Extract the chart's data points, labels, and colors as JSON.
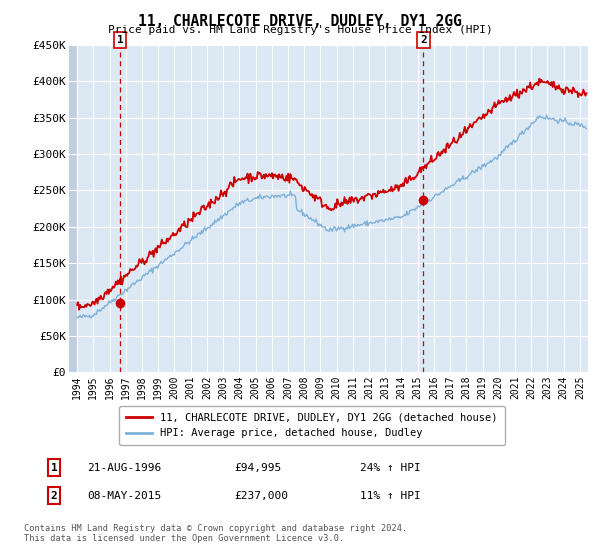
{
  "title": "11, CHARLECOTE DRIVE, DUDLEY, DY1 2GG",
  "subtitle": "Price paid vs. HM Land Registry's House Price Index (HPI)",
  "legend_line1": "11, CHARLECOTE DRIVE, DUDLEY, DY1 2GG (detached house)",
  "legend_line2": "HPI: Average price, detached house, Dudley",
  "sale1_label": "1",
  "sale1_date": "21-AUG-1996",
  "sale1_price": "£94,995",
  "sale1_hpi": "24% ↑ HPI",
  "sale1_year": 1996.64,
  "sale1_value": 94995,
  "sale2_label": "2",
  "sale2_date": "08-MAY-2015",
  "sale2_price": "£237,000",
  "sale2_hpi": "11% ↑ HPI",
  "sale2_year": 2015.35,
  "sale2_value": 237000,
  "ylim": [
    0,
    450000
  ],
  "yticks": [
    0,
    50000,
    100000,
    150000,
    200000,
    250000,
    300000,
    350000,
    400000,
    450000
  ],
  "ytick_labels": [
    "£0",
    "£50K",
    "£100K",
    "£150K",
    "£200K",
    "£250K",
    "£300K",
    "£350K",
    "£400K",
    "£450K"
  ],
  "xlim_start": 1993.5,
  "xlim_end": 2025.5,
  "background_color": "#dce9f5",
  "hatch_color": "#c0cfe0",
  "grid_color": "#ffffff",
  "red_line_color": "#cc0000",
  "blue_line_color": "#7fb0d8",
  "marker_color": "#cc0000",
  "vline_color": "#cc0000",
  "footnote": "Contains HM Land Registry data © Crown copyright and database right 2024.\nThis data is licensed under the Open Government Licence v3.0."
}
